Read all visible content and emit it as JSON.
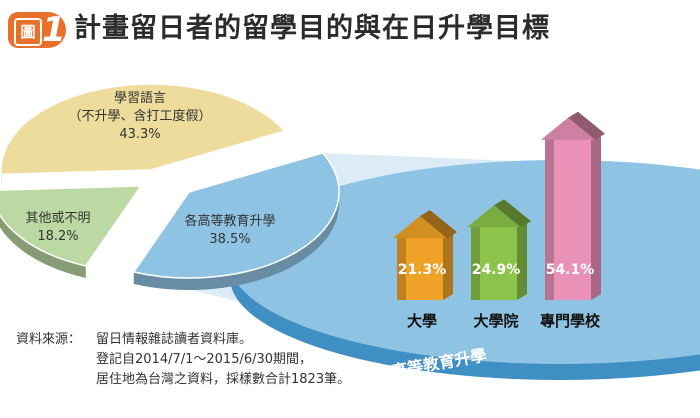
{
  "header": {
    "badge_word": "圖",
    "badge_number": "1",
    "title": "計畫留日者的留學目的與在日升學目標"
  },
  "chart_data": [
    {
      "type": "pie",
      "title": "",
      "slices": [
        {
          "label": "學習語言",
          "sublabel": "（不升學、含打工度假）",
          "value": 43.3,
          "value_label": "43.3%",
          "color": "#eedc9c"
        },
        {
          "label": "各高等教育升學",
          "sublabel": "",
          "value": 38.5,
          "value_label": "38.5%",
          "color": "#8fc3e3"
        },
        {
          "label": "其他或不明",
          "sublabel": "",
          "value": 18.2,
          "value_label": "18.2%",
          "color": "#bcd9a3"
        }
      ],
      "exploded": "各高等教育升學"
    },
    {
      "type": "bar",
      "title": "各高等教育升學",
      "unit": "%",
      "categories": [
        "大學",
        "大學院",
        "專門學校"
      ],
      "values": [
        21.3,
        24.9,
        54.1
      ],
      "value_labels": [
        "21.3%",
        "24.9%",
        "54.1%"
      ],
      "colors": [
        "#f0a128",
        "#8cc34a",
        "#e991b7"
      ],
      "style": "3d-building"
    }
  ],
  "source": {
    "label": "資料來源：",
    "lines": [
      "留日情報雜誌讀者資料庫。",
      "登記自2014/7/1～2015/6/30期間，",
      "居住地為台灣之資料，採樣數合計1823筆。"
    ]
  }
}
